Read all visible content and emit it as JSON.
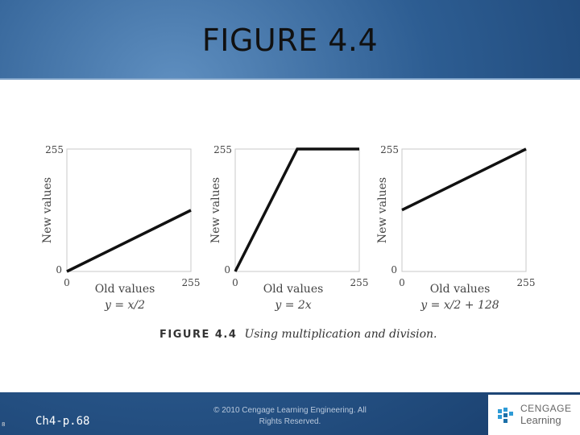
{
  "slide": {
    "title": "FIGURE 4.4",
    "slide_number": "8",
    "page_ref": "Ch4-p.68",
    "copyright": "© 2010 Cengage Learning Engineering. All Rights Reserved.",
    "logo_name": "CENGAGE",
    "logo_sub": "Learning"
  },
  "caption": {
    "label": "FIGURE 4.4",
    "text": "Using multiplication and division."
  },
  "chart_data": [
    {
      "type": "line",
      "xlabel": "Old values",
      "ylabel": "New values",
      "formula": "y = x/2",
      "xlim": [
        0,
        255
      ],
      "ylim": [
        0,
        255
      ],
      "xticks": [
        "0",
        "255"
      ],
      "yticks": [
        "0",
        "255"
      ],
      "grid": false,
      "x": [
        0,
        255
      ],
      "y": [
        0,
        127.5
      ]
    },
    {
      "type": "line",
      "xlabel": "Old values",
      "ylabel": "New values",
      "formula": "y = 2x",
      "xlim": [
        0,
        255
      ],
      "ylim": [
        0,
        255
      ],
      "xticks": [
        "0",
        "255"
      ],
      "yticks": [
        "0",
        "255"
      ],
      "grid": false,
      "x": [
        0,
        127.5,
        255
      ],
      "y": [
        0,
        255,
        255
      ]
    },
    {
      "type": "line",
      "xlabel": "Old values",
      "ylabel": "New values",
      "formula": "y = x/2 + 128",
      "xlim": [
        0,
        255
      ],
      "ylim": [
        0,
        255
      ],
      "xticks": [
        "0",
        "255"
      ],
      "yticks": [
        "0",
        "255"
      ],
      "grid": false,
      "x": [
        0,
        255
      ],
      "y": [
        128,
        255
      ]
    }
  ]
}
